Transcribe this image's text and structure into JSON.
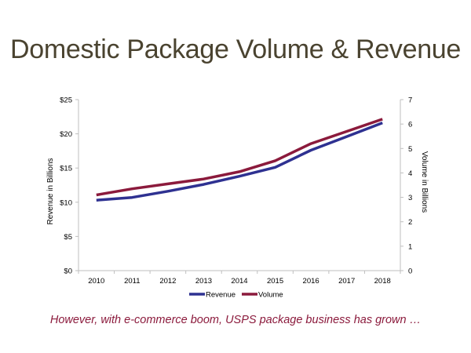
{
  "slide": {
    "title": "Domestic Package Volume & Revenue",
    "caption": "However, with e-commerce boom, USPS package business has grown …"
  },
  "chart_data": {
    "type": "line",
    "x": [
      "2010",
      "2011",
      "2012",
      "2013",
      "2014",
      "2015",
      "2016",
      "2017",
      "2018"
    ],
    "series": [
      {
        "name": "Revenue",
        "axis": "left",
        "color": "#2e3191",
        "values": [
          10.3,
          10.7,
          11.6,
          12.6,
          13.8,
          15.1,
          17.6,
          19.6,
          21.6
        ]
      },
      {
        "name": "Volume",
        "axis": "right",
        "color": "#8b1a3c",
        "values": [
          3.1,
          3.35,
          3.55,
          3.75,
          4.05,
          4.5,
          5.2,
          5.7,
          6.2
        ]
      }
    ],
    "ylabel_left": "Revenue in Billions",
    "ylabel_right": "Volume in Billions",
    "ylim_left": [
      0,
      25
    ],
    "ylim_right": [
      0,
      7
    ],
    "yticks_left": [
      "$0",
      "$5",
      "$10",
      "$15",
      "$20",
      "$25"
    ],
    "yticks_right": [
      "0",
      "1",
      "2",
      "3",
      "4",
      "5",
      "6",
      "7"
    ],
    "grid": false,
    "legend_position": "bottom"
  }
}
